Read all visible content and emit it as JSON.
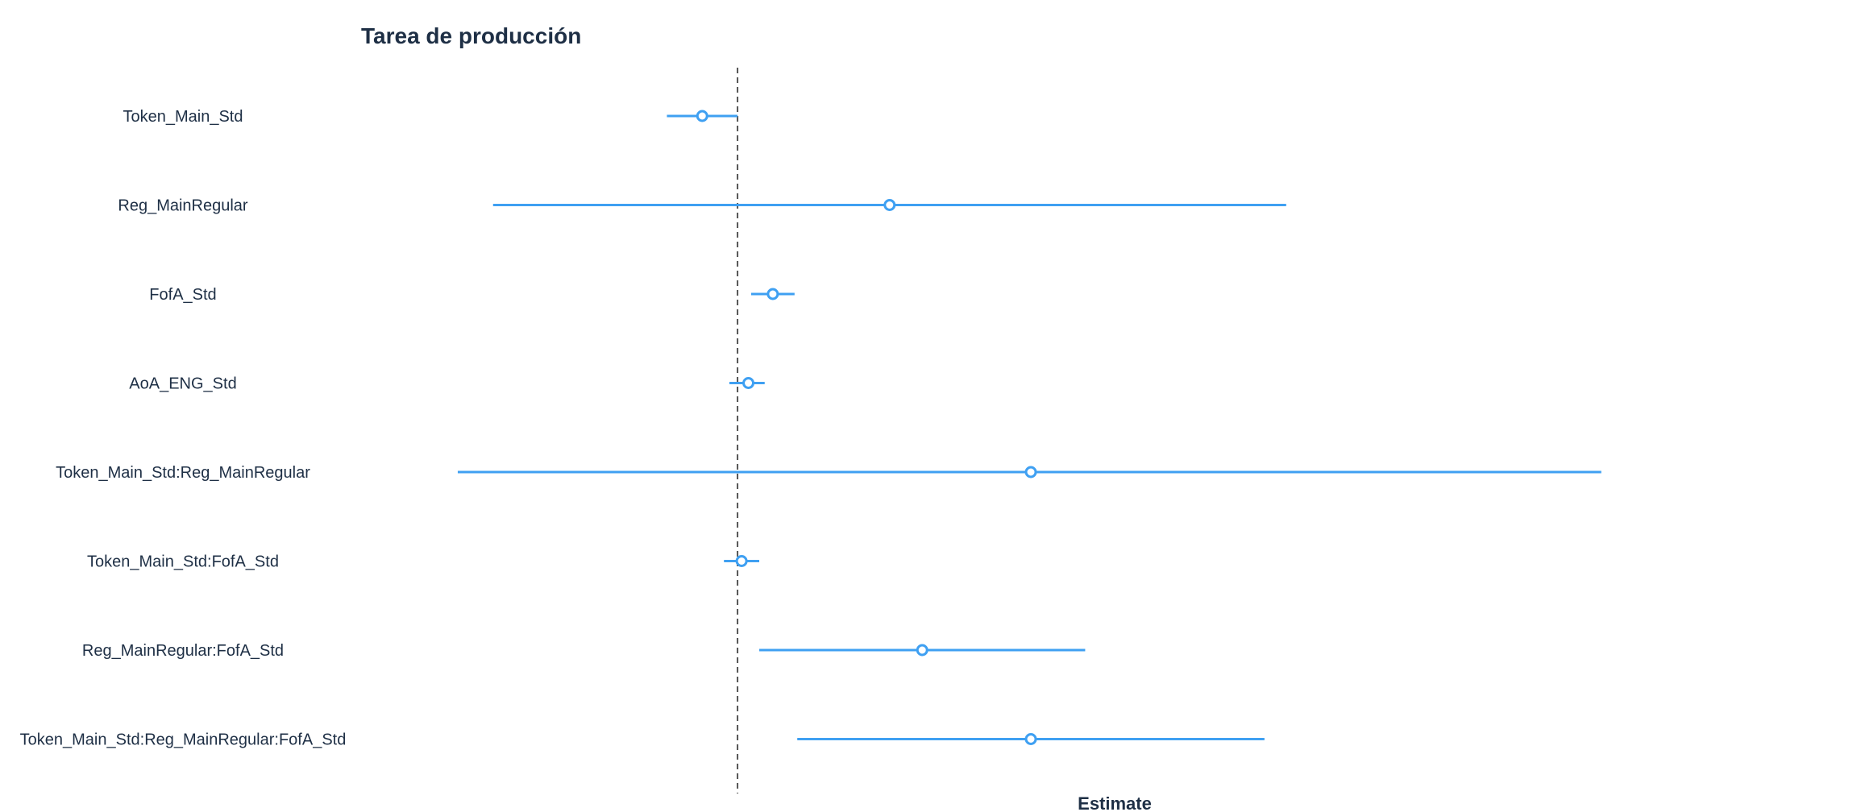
{
  "chart_data": {
    "type": "forest",
    "title": "Tarea de producción",
    "xlabel": "Estimate",
    "ylabel": "",
    "reference_line": 0,
    "reference_line_style": "dashed",
    "xlim": [
      -1.38,
      4.08
    ],
    "grid": false,
    "legend": "none",
    "terms": [
      {
        "label": "Token_Main_Std",
        "estimate": -0.13,
        "low": -0.26,
        "high": 0.0
      },
      {
        "label": "Reg_MainRegular",
        "estimate": 0.56,
        "low": -0.9,
        "high": 2.02
      },
      {
        "label": "FofA_Std",
        "estimate": 0.13,
        "low": 0.05,
        "high": 0.21
      },
      {
        "label": "AoA_ENG_Std",
        "estimate": 0.04,
        "low": -0.03,
        "high": 0.1
      },
      {
        "label": "Token_Main_Std:Reg_MainRegular",
        "estimate": 1.08,
        "low": -1.03,
        "high": 3.18
      },
      {
        "label": "Token_Main_Std:FofA_Std",
        "estimate": 0.015,
        "low": -0.05,
        "high": 0.08
      },
      {
        "label": "Reg_MainRegular:FofA_Std",
        "estimate": 0.68,
        "low": 0.08,
        "high": 1.28
      },
      {
        "label": "Token_Main_Std:Reg_MainRegular:FofA_Std",
        "estimate": 1.08,
        "low": 0.22,
        "high": 1.94
      }
    ],
    "colors": {
      "interval": "#3fa0f2",
      "point_fill": "#ffffff",
      "reference_line": "#555555",
      "text": "#1e2f45"
    }
  }
}
